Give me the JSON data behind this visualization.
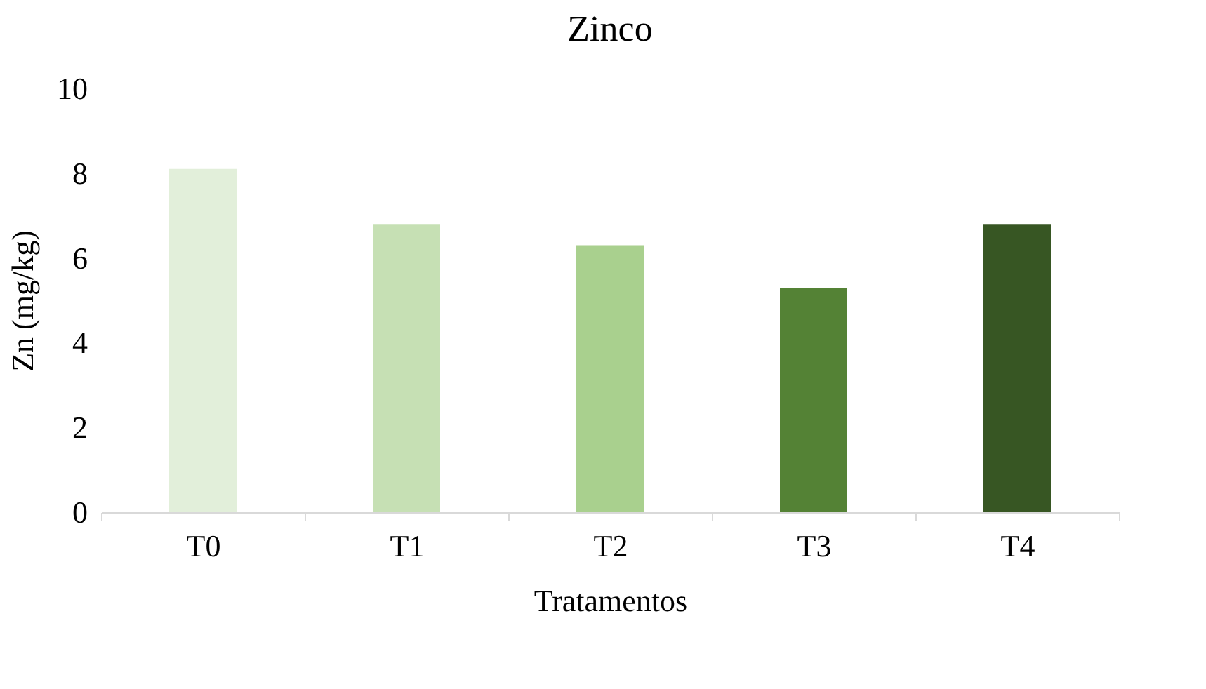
{
  "chart_data": {
    "type": "bar",
    "title": "Zinco",
    "xlabel": "Tratamentos",
    "ylabel": "Zn (mg/kg)",
    "categories": [
      "T0",
      "T1",
      "T2",
      "T3",
      "T4"
    ],
    "values": [
      8.1,
      6.8,
      6.3,
      5.3,
      6.8
    ],
    "colors": [
      "#e2efda",
      "#c6e0b4",
      "#a9d08e",
      "#548235",
      "#375623"
    ],
    "ylim": [
      0,
      10
    ],
    "yticks": [
      0,
      2,
      4,
      6,
      8,
      10
    ],
    "grid": false
  }
}
